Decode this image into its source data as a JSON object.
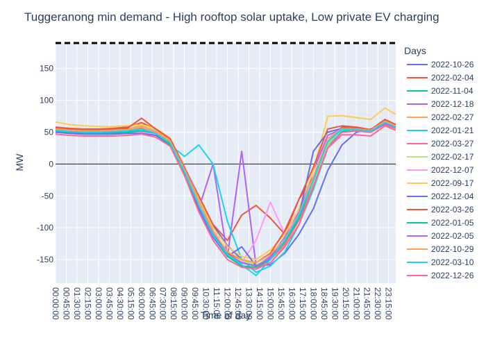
{
  "chart_data": {
    "type": "line",
    "title": "Tuggeranong min demand - High rooftop solar uptake, Low private EV charging",
    "xlabel": "Time of day",
    "ylabel": "MW",
    "legend_title": "Days",
    "legend_position": "right",
    "ylim": [
      -187,
      190
    ],
    "yticks": [
      -150,
      -100,
      -50,
      0,
      50,
      100,
      150
    ],
    "grid": true,
    "zero_line": true,
    "upper_limit_line": {
      "y": 190,
      "style": "dashed"
    },
    "x_tick_labels": [
      "00:00:00",
      "00:45:00",
      "01:30:00",
      "02:15:00",
      "03:00:00",
      "03:45:00",
      "04:30:00",
      "05:15:00",
      "06:00:00",
      "06:45:00",
      "07:30:00",
      "08:15:00",
      "09:00:00",
      "09:45:00",
      "10:30:00",
      "11:15:00",
      "12:00:00",
      "12:45:00",
      "13:30:00",
      "14:15:00",
      "15:00:00",
      "15:45:00",
      "16:30:00",
      "17:15:00",
      "18:00:00",
      "18:45:00",
      "19:30:00",
      "20:15:00",
      "21:00:00",
      "21:45:00",
      "22:30:00",
      "23:15:00"
    ],
    "x_hours": [
      0,
      1,
      2,
      3,
      4,
      5,
      6,
      7,
      8,
      9,
      10,
      11,
      12,
      13,
      14,
      15,
      16,
      17,
      18,
      19,
      20,
      21,
      22,
      23,
      24
    ],
    "series": [
      {
        "name": "2022-10-26",
        "color": "#636efa",
        "values": [
          54,
          52,
          51,
          51,
          51,
          51,
          52,
          49,
          35,
          -5,
          -50,
          -96,
          -128,
          -150,
          -160,
          -158,
          -140,
          -110,
          -70,
          -10,
          30,
          50,
          55,
          62,
          58
        ]
      },
      {
        "name": "2022-02-04",
        "color": "#EF553B",
        "values": [
          58,
          56,
          55,
          55,
          56,
          58,
          65,
          55,
          40,
          -10,
          -50,
          -95,
          -120,
          -80,
          -65,
          -85,
          -110,
          -55,
          -20,
          35,
          58,
          56,
          52,
          70,
          62
        ]
      },
      {
        "name": "2022-11-04",
        "color": "#00cc96",
        "values": [
          52,
          50,
          49,
          49,
          49,
          50,
          55,
          48,
          30,
          -15,
          -70,
          -115,
          -145,
          -155,
          -160,
          -148,
          -120,
          -80,
          -25,
          30,
          52,
          53,
          51,
          64,
          58
        ]
      },
      {
        "name": "2022-12-18",
        "color": "#ab63fa",
        "values": [
          50,
          48,
          47,
          47,
          47,
          48,
          50,
          45,
          30,
          -15,
          -70,
          0,
          -145,
          20,
          -160,
          -145,
          -115,
          -75,
          -10,
          45,
          55,
          55,
          53,
          66,
          60
        ]
      },
      {
        "name": "2022-02-27",
        "color": "#FFA15A",
        "values": [
          56,
          54,
          53,
          53,
          54,
          55,
          60,
          52,
          38,
          -8,
          -62,
          -110,
          -140,
          -155,
          -160,
          -150,
          -128,
          -88,
          -30,
          30,
          55,
          54,
          52,
          68,
          60
        ]
      },
      {
        "name": "2022-01-21",
        "color": "#19d3f3",
        "values": [
          52,
          50,
          49,
          49,
          49,
          50,
          52,
          50,
          30,
          12,
          30,
          0,
          -90,
          -150,
          -170,
          -160,
          -138,
          -95,
          -40,
          25,
          55,
          55,
          53,
          65,
          58
        ]
      },
      {
        "name": "2022-03-27",
        "color": "#FF6692",
        "values": [
          54,
          52,
          51,
          51,
          52,
          53,
          56,
          50,
          35,
          -12,
          -68,
          -115,
          -145,
          -160,
          -165,
          -150,
          -125,
          -88,
          -35,
          25,
          50,
          52,
          50,
          62,
          56
        ]
      },
      {
        "name": "2022-02-17",
        "color": "#B6E880",
        "values": [
          55,
          53,
          52,
          52,
          53,
          54,
          58,
          50,
          36,
          -10,
          -62,
          -108,
          -138,
          -152,
          -158,
          -148,
          -122,
          -82,
          -28,
          32,
          54,
          54,
          52,
          66,
          59
        ]
      },
      {
        "name": "2022-12-07",
        "color": "#FF97FF",
        "values": [
          50,
          48,
          47,
          47,
          47,
          48,
          50,
          46,
          30,
          -15,
          -70,
          -115,
          -145,
          -155,
          -120,
          -60,
          -110,
          -80,
          -20,
          40,
          54,
          54,
          52,
          65,
          58
        ]
      },
      {
        "name": "2022-09-17",
        "color": "#FECB52",
        "values": [
          66,
          62,
          60,
          59,
          59,
          60,
          62,
          56,
          40,
          -5,
          -55,
          -100,
          -130,
          -145,
          -150,
          -135,
          -110,
          -70,
          -10,
          75,
          76,
          73,
          70,
          88,
          78
        ]
      },
      {
        "name": "2022-12-04",
        "color": "#636efa",
        "values": [
          50,
          48,
          47,
          47,
          47,
          48,
          48,
          45,
          30,
          -15,
          -70,
          -115,
          -145,
          -130,
          -160,
          -150,
          -120,
          -80,
          20,
          50,
          56,
          55,
          52,
          64,
          58
        ]
      },
      {
        "name": "2022-03-26",
        "color": "#EF553B",
        "values": [
          56,
          54,
          53,
          53,
          54,
          56,
          72,
          55,
          40,
          -5,
          -58,
          -105,
          -140,
          -150,
          -155,
          -140,
          -105,
          -55,
          -5,
          55,
          60,
          58,
          54,
          70,
          62
        ]
      },
      {
        "name": "2022-01-05",
        "color": "#00cc96",
        "values": [
          52,
          50,
          49,
          49,
          49,
          50,
          52,
          48,
          30,
          -15,
          -65,
          -112,
          -145,
          -160,
          -162,
          -150,
          -122,
          -85,
          -25,
          35,
          55,
          54,
          52,
          65,
          58
        ]
      },
      {
        "name": "2022-02-05",
        "color": "#ab63fa",
        "values": [
          53,
          51,
          50,
          50,
          51,
          52,
          55,
          48,
          33,
          -12,
          -65,
          -110,
          -142,
          -155,
          -160,
          -148,
          -120,
          -80,
          -25,
          35,
          55,
          54,
          52,
          65,
          58
        ]
      },
      {
        "name": "2022-10-29",
        "color": "#FFA15A",
        "values": [
          55,
          53,
          52,
          52,
          53,
          54,
          58,
          50,
          36,
          -8,
          -58,
          -105,
          -138,
          -150,
          -155,
          -142,
          -118,
          -78,
          -20,
          40,
          56,
          55,
          53,
          67,
          60
        ]
      },
      {
        "name": "2022-03-10",
        "color": "#19d3f3",
        "values": [
          53,
          51,
          50,
          50,
          51,
          52,
          55,
          48,
          33,
          -12,
          -65,
          -112,
          -142,
          -158,
          -175,
          -150,
          -120,
          -80,
          -25,
          35,
          55,
          54,
          52,
          65,
          58
        ]
      },
      {
        "name": "2022-12-26",
        "color": "#FF6692",
        "values": [
          47,
          45,
          44,
          44,
          44,
          45,
          47,
          42,
          28,
          -18,
          -75,
          -120,
          -150,
          -162,
          -165,
          -155,
          -130,
          -95,
          -35,
          25,
          46,
          46,
          44,
          60,
          53
        ]
      }
    ]
  }
}
